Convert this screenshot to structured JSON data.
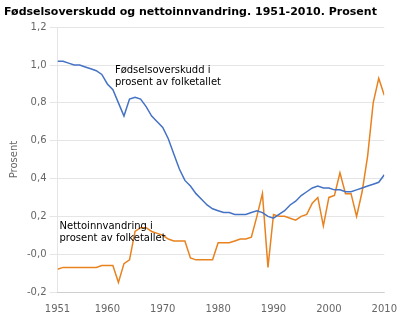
{
  "chart_data": {
    "type": "line",
    "title": "Fødselsoverskudd og nettoinnvandring. 1951-2010. Prosent",
    "ylabel": "Prosent",
    "x": [
      1951,
      1952,
      1953,
      1954,
      1955,
      1956,
      1957,
      1958,
      1959,
      1960,
      1961,
      1962,
      1963,
      1964,
      1965,
      1966,
      1967,
      1968,
      1969,
      1970,
      1971,
      1972,
      1973,
      1974,
      1975,
      1976,
      1977,
      1978,
      1979,
      1980,
      1981,
      1982,
      1983,
      1984,
      1985,
      1986,
      1987,
      1988,
      1989,
      1990,
      1991,
      1992,
      1993,
      1994,
      1995,
      1996,
      1997,
      1998,
      1999,
      2000,
      2001,
      2002,
      2003,
      2004,
      2005,
      2006,
      2007,
      2008,
      2009,
      2010
    ],
    "series": [
      {
        "color": "#4472C4",
        "values": [
          1.02,
          1.02,
          1.01,
          1.0,
          1.0,
          0.99,
          0.98,
          0.97,
          0.95,
          0.9,
          0.87,
          0.8,
          0.73,
          0.82,
          0.83,
          0.82,
          0.78,
          0.73,
          0.7,
          0.67,
          0.61,
          0.53,
          0.45,
          0.39,
          0.36,
          0.32,
          0.29,
          0.26,
          0.24,
          0.23,
          0.22,
          0.22,
          0.21,
          0.21,
          0.21,
          0.22,
          0.23,
          0.22,
          0.2,
          0.19,
          0.21,
          0.23,
          0.26,
          0.28,
          0.31,
          0.33,
          0.35,
          0.36,
          0.35,
          0.35,
          0.34,
          0.34,
          0.33,
          0.33,
          0.34,
          0.35,
          0.36,
          0.37,
          0.38,
          0.42
        ]
      },
      {
        "color": "#E8821E",
        "values": [
          -0.08,
          -0.07,
          -0.07,
          -0.07,
          -0.07,
          -0.07,
          -0.07,
          -0.07,
          -0.06,
          -0.06,
          -0.06,
          -0.15,
          -0.05,
          -0.03,
          0.12,
          0.14,
          0.14,
          0.12,
          0.11,
          0.1,
          0.08,
          0.07,
          0.07,
          0.07,
          -0.02,
          -0.03,
          -0.03,
          -0.03,
          -0.03,
          0.06,
          0.06,
          0.06,
          0.07,
          0.08,
          0.08,
          0.09,
          0.2,
          0.32,
          -0.07,
          0.21,
          0.2,
          0.2,
          0.19,
          0.18,
          0.2,
          0.21,
          0.27,
          0.3,
          0.15,
          0.3,
          0.31,
          0.43,
          0.32,
          0.32,
          0.2,
          0.33,
          0.52,
          0.8,
          0.93,
          0.84
        ]
      }
    ],
    "xlim": [
      1951,
      2010
    ],
    "xticks": [
      1951,
      1960,
      1970,
      1980,
      1990,
      2000,
      2010
    ],
    "ylim": [
      -0.2,
      1.2
    ],
    "yticks": [
      {
        "value": -0.2,
        "label": "-0,2"
      },
      {
        "value": 0.0,
        "label": "-0,0"
      },
      {
        "value": 0.2,
        "label": "0,2"
      },
      {
        "value": 0.4,
        "label": "0,4"
      },
      {
        "value": 0.6,
        "label": "0,6"
      },
      {
        "value": 0.8,
        "label": "0,8"
      },
      {
        "value": 1.0,
        "label": "1,0"
      },
      {
        "value": 1.2,
        "label": "1,2"
      }
    ],
    "grid": true,
    "annotations": [
      {
        "text": "Fødselsoverskudd i\nprosent av folketallet",
        "x": 1961,
        "y": 0.88
      },
      {
        "text": "Nettoinnvandring i\nprosent av folketallet",
        "x": 1951,
        "y": 0.175
      }
    ]
  }
}
